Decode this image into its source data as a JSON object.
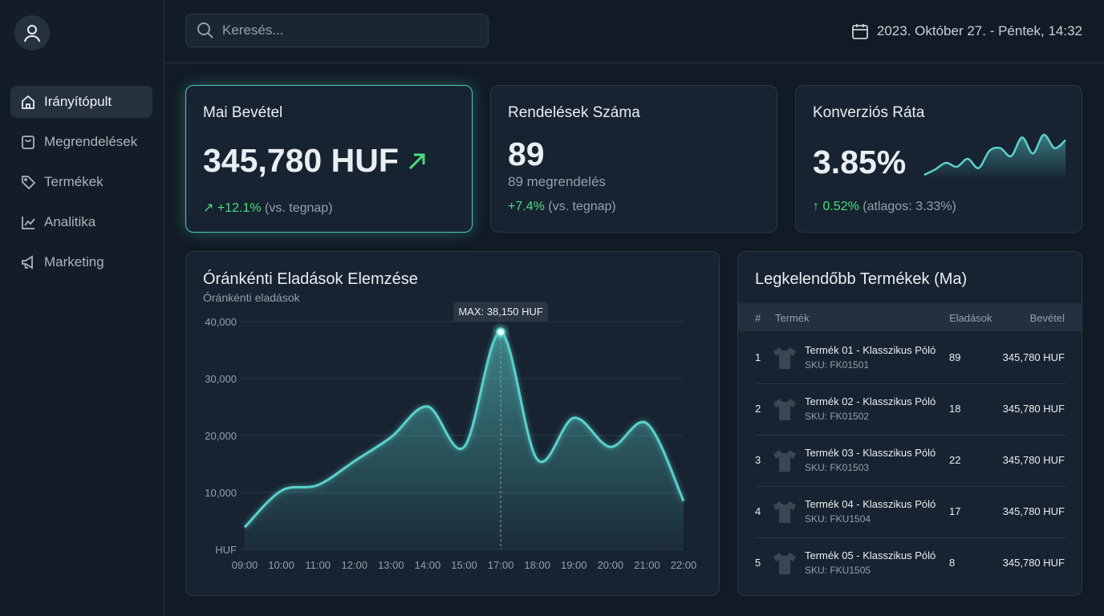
{
  "nav": [
    "Irányítópult",
    "Megrendelések",
    "Termékek",
    "Analitika",
    "Marketing"
  ],
  "search_placeholder": "Keresés...",
  "datetime": "2023. Október 27. - Péntek, 14:32",
  "kpis": [
    {
      "title": "Mai Bevétel",
      "value": "345,780 HUF",
      "change": "+12.1%",
      "note": "(vs. tegnap)"
    },
    {
      "title": "Rendelések Száma",
      "value": "89",
      "subtitle": "89 megrendelés",
      "change": "+7.4%",
      "note": "(vs. tegnap)"
    },
    {
      "title": "Konverziós Ráta",
      "value": "3.85%",
      "change": "0.52%",
      "note": "(atlagos: 3.33%)",
      "sparkline": [
        0,
        4,
        9,
        6,
        12,
        5,
        18,
        20,
        14,
        28,
        16,
        30,
        20,
        26
      ]
    }
  ],
  "chart_data": {
    "type": "line",
    "title": "Óránkénti Eladások Elemzése",
    "subtitle": "Óránkénti eladások",
    "categories": [
      "09:00",
      "10:00",
      "11:00",
      "12:00",
      "13:00",
      "14:00",
      "15:00",
      "17:00",
      "18:00",
      "19:00",
      "20:00",
      "21:00",
      "22:00"
    ],
    "values": [
      3900,
      10300,
      11300,
      15500,
      19700,
      25100,
      18000,
      38150,
      15800,
      23100,
      18000,
      22100,
      8500
    ],
    "color": "#5ad1cc",
    "ylim": [
      0,
      40000
    ],
    "yticks": [
      {
        "value": 0,
        "label": "HUF"
      },
      {
        "value": 10000,
        "label": "10,000"
      },
      {
        "value": 20000,
        "label": "20,000"
      },
      {
        "value": 30000,
        "label": "30,000"
      },
      {
        "value": 40000,
        "label": "40,000"
      }
    ],
    "grid": true,
    "annotation": "MAX: 38,150 HUF"
  },
  "top_products": {
    "title": "Legkelendőbb Termékek (Ma)",
    "columns": [
      "#",
      "Termék",
      "Eladások",
      "Bevétel"
    ],
    "rows": [
      [
        "1",
        "Termék 01 - Klasszikus Póló",
        "SKU: FK01501",
        "89",
        "345,780 HUF"
      ],
      [
        "2",
        "Termék 02 - Klasszikus Póló",
        "SKU: FK01502",
        "18",
        "345,780 HUF"
      ],
      [
        "3",
        "Termék 03 - Klasszikus Póló",
        "SKU: FK01503",
        "22",
        "345,780 HUF"
      ],
      [
        "4",
        "Termék 04 - Klasszikus Póló",
        "SKU: FKU1504",
        "17",
        "345,780 HUF"
      ],
      [
        "5",
        "Termék 05 - Klasszikus Póló",
        "SKU: FKU1505",
        "8",
        "345,780 HUF"
      ]
    ]
  }
}
